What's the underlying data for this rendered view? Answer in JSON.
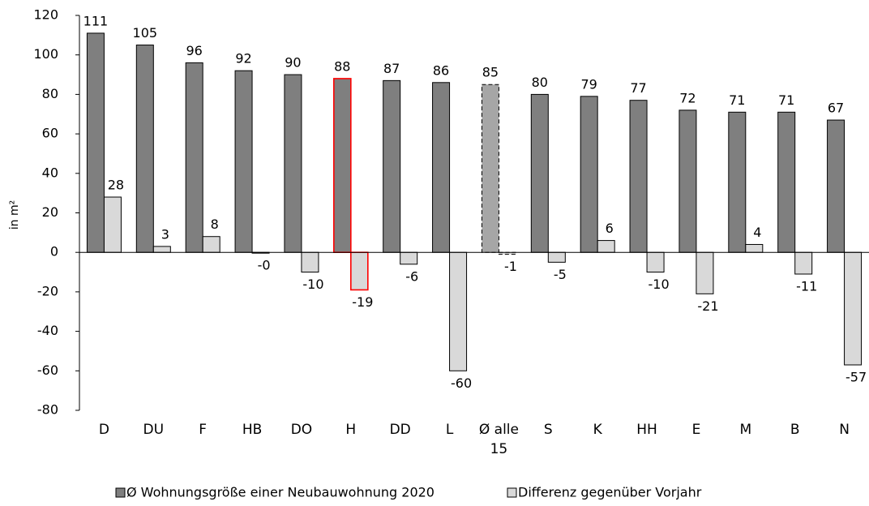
{
  "chart_data": {
    "type": "bar",
    "y_label": "in m²",
    "categories": [
      "D",
      "DU",
      "F",
      "HB",
      "DO",
      "H",
      "DD",
      "L",
      "Ø alle 15",
      "S",
      "K",
      "HH",
      "E",
      "M",
      "B",
      "N"
    ],
    "series": [
      {
        "name": "Ø Wohnungsgröße einer Neubauwohnung 2020",
        "color": "#7f7f7f",
        "values": [
          111,
          105,
          96,
          92,
          90,
          88,
          87,
          86,
          85,
          80,
          79,
          77,
          72,
          71,
          71,
          67
        ],
        "fill_colors": [
          "#7f7f7f",
          "#7f7f7f",
          "#7f7f7f",
          "#7f7f7f",
          "#7f7f7f",
          "#7f7f7f",
          "#7f7f7f",
          "#7f7f7f",
          "#a6a6a6",
          "#7f7f7f",
          "#7f7f7f",
          "#7f7f7f",
          "#7f7f7f",
          "#7f7f7f",
          "#7f7f7f",
          "#7f7f7f"
        ],
        "edge_colors": [
          "#000000",
          "#000000",
          "#000000",
          "#000000",
          "#000000",
          "#ff0000",
          "#000000",
          "#000000",
          "#000000",
          "#000000",
          "#000000",
          "#000000",
          "#000000",
          "#000000",
          "#000000",
          "#000000"
        ],
        "edge_dashed": [
          false,
          false,
          false,
          false,
          false,
          false,
          false,
          false,
          true,
          false,
          false,
          false,
          false,
          false,
          false,
          false
        ]
      },
      {
        "name": "Differenz gegenüber Vorjahr",
        "color": "#d9d9d9",
        "values": [
          28,
          3,
          8,
          -0.4,
          -10,
          -19,
          -6,
          -60,
          -1,
          -5,
          6,
          -10,
          -21,
          4,
          -11,
          -57
        ],
        "value_labels": [
          "28",
          "3",
          "8",
          "-0",
          "-10",
          "-19",
          "-6",
          "-60",
          "-1",
          "-5",
          "6",
          "-10",
          "-21",
          "4",
          "-11",
          "-57"
        ],
        "fill_colors": [
          "#d9d9d9",
          "#d9d9d9",
          "#d9d9d9",
          "#d9d9d9",
          "#d9d9d9",
          "#d9d9d9",
          "#d9d9d9",
          "#d9d9d9",
          "#d9d9d9",
          "#d9d9d9",
          "#d9d9d9",
          "#d9d9d9",
          "#d9d9d9",
          "#d9d9d9",
          "#d9d9d9",
          "#d9d9d9"
        ],
        "edge_colors": [
          "#000000",
          "#000000",
          "#000000",
          "#000000",
          "#000000",
          "#ff0000",
          "#000000",
          "#000000",
          "#000000",
          "#000000",
          "#000000",
          "#000000",
          "#000000",
          "#000000",
          "#000000",
          "#000000"
        ],
        "edge_dashed": [
          false,
          false,
          false,
          false,
          false,
          false,
          false,
          false,
          true,
          false,
          false,
          false,
          false,
          false,
          false,
          false
        ]
      }
    ],
    "negative_label_color": "#ff0000",
    "ylim": [
      -80,
      120
    ],
    "yticks": [
      -80,
      -60,
      -40,
      -20,
      0,
      20,
      40,
      60,
      80,
      100,
      120
    ],
    "grid": false,
    "legend": "bottom"
  }
}
